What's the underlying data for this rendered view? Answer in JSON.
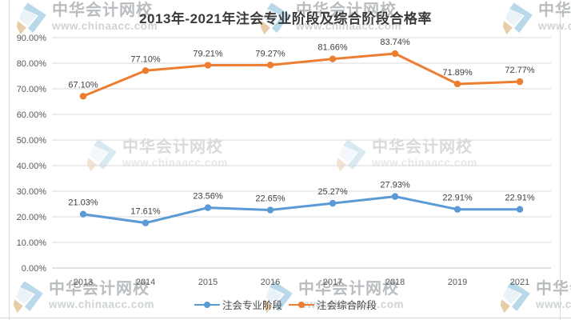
{
  "title": "2013年-2021年注会专业阶段及综合阶段合格率",
  "watermark": {
    "name": "中华会计网校",
    "url": "www.chinaacc.com"
  },
  "chart_data": {
    "type": "line",
    "title": "2013年-2021年注会专业阶段及综合阶段合格率",
    "categories": [
      "2013",
      "2014",
      "2015",
      "2016",
      "2017",
      "2018",
      "2019",
      "2021"
    ],
    "series": [
      {
        "name": "注会专业阶段",
        "color": "#5B9BD5",
        "values": [
          21.03,
          17.61,
          23.56,
          22.65,
          25.27,
          27.93,
          22.91,
          22.91
        ]
      },
      {
        "name": "注会综合阶段",
        "color": "#ED7D31",
        "values": [
          67.1,
          77.1,
          79.21,
          79.27,
          81.66,
          83.74,
          71.89,
          72.77
        ]
      }
    ],
    "xlabel": "",
    "ylabel": "",
    "ylim": [
      0,
      90
    ],
    "ytick_step": 10,
    "ytick_format": "0.00%",
    "grid": true,
    "legend_position": "bottom",
    "colors": {
      "grid": "#d9d9d9",
      "axis_line": "#c6c6c6",
      "tick_label": "#595959",
      "data_label": "#404040"
    }
  }
}
